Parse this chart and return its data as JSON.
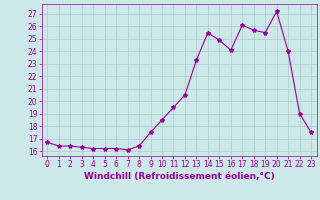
{
  "hours": [
    0,
    1,
    2,
    3,
    4,
    5,
    6,
    7,
    8,
    9,
    10,
    11,
    12,
    13,
    14,
    15,
    16,
    17,
    18,
    19,
    20,
    21,
    22,
    23
  ],
  "values": [
    16.7,
    16.4,
    16.4,
    16.3,
    16.2,
    16.2,
    16.2,
    16.1,
    16.4,
    17.5,
    18.5,
    19.5,
    20.5,
    23.3,
    25.5,
    24.9,
    24.1,
    26.1,
    25.7,
    25.5,
    27.2,
    24.0,
    19.0,
    17.5
  ],
  "line_color": "#990099",
  "marker": "*",
  "marker_size": 3,
  "bg_color": "#cce8e8",
  "grid_color": "#aacccc",
  "xlabel": "Windchill (Refroidissement éolien,°C)",
  "xlabel_fontsize": 6.5,
  "ylabel_ticks": [
    16,
    17,
    18,
    19,
    20,
    21,
    22,
    23,
    24,
    25,
    26,
    27
  ],
  "xtick_labels": [
    "0",
    "1",
    "2",
    "3",
    "4",
    "5",
    "6",
    "7",
    "8",
    "9",
    "10",
    "11",
    "12",
    "13",
    "14",
    "15",
    "16",
    "17",
    "18",
    "19",
    "20",
    "21",
    "22",
    "23"
  ],
  "xlim": [
    -0.5,
    23.5
  ],
  "ylim": [
    15.6,
    27.8
  ],
  "tick_fontsize": 5.5,
  "line_width": 0.8
}
